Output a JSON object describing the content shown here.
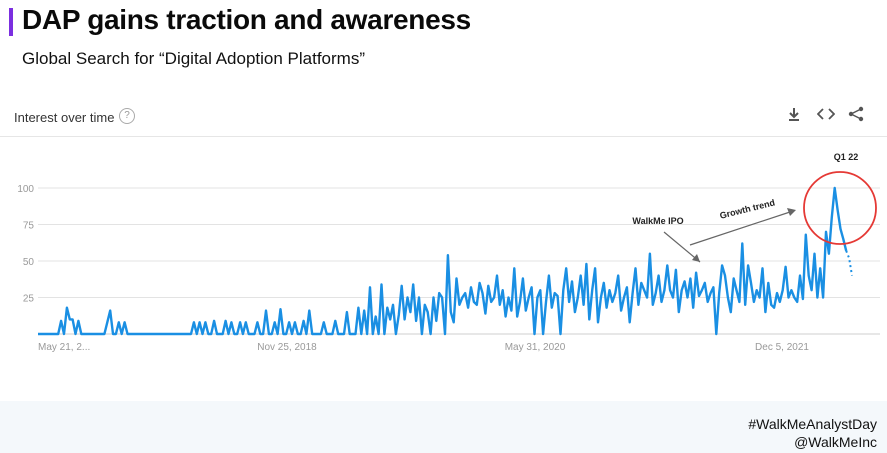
{
  "slide": {
    "title": "DAP gains traction and awareness",
    "subtitle": "Global Search for “Digital Adoption Platforms”",
    "hashtag": "#WalkMeAnalystDay",
    "handle": "@WalkMeInc",
    "accent_color": "#7b2fe0"
  },
  "panel": {
    "header": "Interest over time",
    "help_icon": "question-circle-icon",
    "tools": [
      "download-icon",
      "embed-code-icon",
      "share-icon"
    ]
  },
  "chart_data": {
    "type": "line",
    "title": "",
    "xlabel": "",
    "ylabel": "",
    "ylim": [
      0,
      100
    ],
    "yticks": [
      25,
      50,
      75,
      100
    ],
    "xtick_labels": [
      "May 21, 2...",
      "Nov 25, 2018",
      "May 31, 2020",
      "Dec 5, 2021"
    ],
    "line_color": "#1a8fe3",
    "grid": true,
    "annotations": [
      {
        "text": "WalkMe IPO"
      },
      {
        "text": "Growth trend"
      },
      {
        "text": "Q1 22"
      }
    ],
    "series": [
      {
        "values": [
          0,
          0,
          0,
          0,
          0,
          0,
          0,
          0,
          9,
          0,
          18,
          10,
          10,
          0,
          9,
          0,
          0,
          0,
          0,
          0,
          0,
          0,
          0,
          0,
          8,
          16,
          0,
          0,
          8,
          0,
          8,
          0,
          0,
          0,
          0,
          0,
          0,
          0,
          0,
          0,
          0,
          0,
          0,
          0,
          0,
          0,
          0,
          0,
          0,
          0,
          0,
          0,
          0,
          0,
          8,
          0,
          8,
          0,
          8,
          0,
          0,
          9,
          0,
          0,
          0,
          9,
          0,
          8,
          0,
          0,
          8,
          0,
          8,
          0,
          0,
          0,
          8,
          0,
          0,
          16,
          0,
          0,
          8,
          0,
          17,
          0,
          0,
          8,
          0,
          8,
          0,
          0,
          9,
          0,
          16,
          0,
          0,
          0,
          0,
          8,
          0,
          0,
          0,
          9,
          0,
          0,
          0,
          15,
          0,
          0,
          0,
          18,
          0,
          16,
          0,
          32,
          0,
          12,
          0,
          34,
          0,
          18,
          10,
          20,
          0,
          13,
          33,
          10,
          25,
          15,
          34,
          9,
          25,
          0,
          20,
          15,
          0,
          25,
          9,
          28,
          25,
          0,
          54,
          15,
          8,
          38,
          20,
          25,
          28,
          18,
          32,
          22,
          20,
          35,
          28,
          14,
          33,
          22,
          25,
          40,
          20,
          30,
          12,
          25,
          16,
          45,
          12,
          22,
          38,
          16,
          25,
          32,
          0,
          25,
          30,
          0,
          22,
          40,
          18,
          28,
          26,
          0,
          30,
          45,
          22,
          36,
          15,
          25,
          40,
          20,
          48,
          10,
          30,
          45,
          8,
          25,
          35,
          18,
          30,
          22,
          28,
          40,
          16,
          25,
          32,
          8,
          28,
          45,
          20,
          35,
          30,
          25,
          55,
          20,
          28,
          40,
          22,
          30,
          47,
          30,
          25,
          44,
          15,
          30,
          36,
          25,
          38,
          18,
          42,
          26,
          30,
          35,
          22,
          28,
          32,
          0,
          28,
          47,
          40,
          25,
          15,
          38,
          30,
          22,
          62,
          20,
          47,
          35,
          22,
          30,
          25,
          45,
          15,
          35,
          20,
          18,
          28,
          22,
          30,
          46,
          25,
          30,
          25,
          22,
          40,
          24,
          68,
          40,
          30,
          55,
          25,
          45,
          25,
          70,
          55,
          80,
          100,
          85,
          72,
          65,
          57,
          52,
          40
        ]
      }
    ]
  }
}
